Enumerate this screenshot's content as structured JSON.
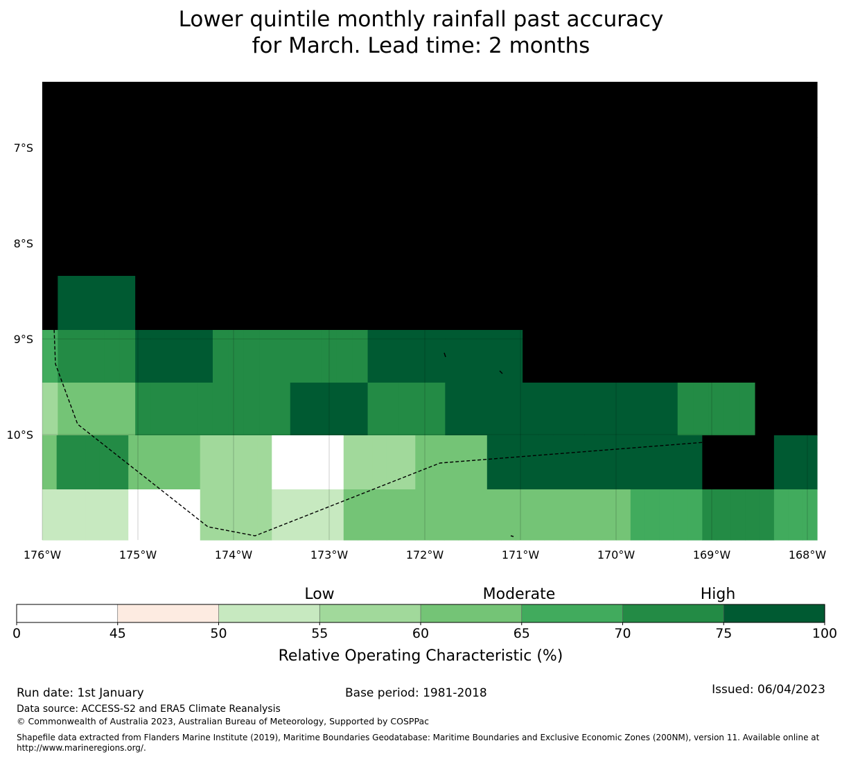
{
  "title": {
    "line1": "Lower quintile monthly rainfall past accuracy",
    "line2": "for March. Lead time: 2 months"
  },
  "map": {
    "lat_labels": [
      "7°S",
      "8°S",
      "9°S",
      "10°S"
    ],
    "lon_labels": [
      "176°W",
      "175°W",
      "174°W",
      "173°W",
      "172°W",
      "171°W",
      "170°W",
      "169°W",
      "168°W"
    ],
    "grid_rows": [
      [
        8,
        8,
        8,
        8,
        8,
        8,
        8,
        8,
        8,
        8,
        8,
        8,
        8,
        8,
        8,
        8,
        8,
        8,
        8,
        8,
        8,
        8,
        8,
        8,
        8,
        8,
        8,
        8,
        8,
        8,
        8,
        8,
        8,
        8,
        8,
        8,
        8,
        8,
        8,
        8,
        8,
        8,
        8,
        8,
        8,
        8,
        8,
        8,
        8,
        8
      ],
      [
        8,
        8,
        8,
        8,
        8,
        8,
        8,
        8,
        8,
        8,
        8,
        8,
        8,
        8,
        8,
        8,
        8,
        8,
        8,
        8,
        8,
        8,
        8,
        8,
        8,
        8,
        8,
        8,
        8,
        8,
        8,
        8,
        8,
        8,
        8,
        8,
        8,
        8,
        8,
        8,
        8,
        8,
        8,
        8,
        8,
        8,
        8,
        8,
        8,
        8
      ],
      [
        8,
        8,
        8,
        8,
        8,
        8,
        8,
        8,
        8,
        8,
        8,
        8,
        8,
        8,
        8,
        8,
        8,
        8,
        8,
        8,
        8,
        8,
        8,
        8,
        8,
        8,
        8,
        8,
        8,
        8,
        8,
        8,
        8,
        8,
        8,
        8,
        8,
        8,
        8,
        8,
        8,
        8,
        8,
        8,
        8,
        8,
        8,
        8,
        8,
        8
      ],
      [
        8,
        7,
        7,
        7,
        7,
        7,
        8,
        8,
        8,
        8,
        8,
        8,
        8,
        8,
        8,
        8,
        8,
        8,
        8,
        8,
        8,
        8,
        8,
        8,
        8,
        8,
        8,
        8,
        8,
        8,
        8,
        8,
        8,
        8,
        8,
        8,
        8,
        8,
        8,
        8,
        8,
        8,
        8,
        8,
        8,
        8,
        8,
        8,
        8,
        8
      ],
      [
        5,
        6,
        6,
        6,
        6,
        6,
        7,
        7,
        7,
        7,
        7,
        6,
        6,
        6,
        6,
        6,
        6,
        6,
        6,
        6,
        6,
        7,
        7,
        7,
        7,
        7,
        7,
        7,
        7,
        7,
        7,
        8,
        8,
        8,
        8,
        8,
        8,
        8,
        8,
        8,
        8,
        8,
        8,
        8,
        8,
        8,
        8,
        8,
        8,
        8
      ],
      [
        3,
        4,
        4,
        4,
        4,
        4,
        6,
        6,
        6,
        6,
        6,
        6,
        6,
        6,
        6,
        6,
        7,
        7,
        7,
        7,
        7,
        6,
        6,
        6,
        6,
        6,
        7,
        7,
        7,
        7,
        7,
        7,
        7,
        7,
        7,
        7,
        7,
        7,
        7,
        7,
        7,
        6,
        6,
        6,
        6,
        6,
        8,
        8,
        8,
        8
      ],
      [
        4,
        6,
        6,
        6,
        6,
        6,
        4,
        4,
        4,
        4,
        4,
        3,
        3,
        3,
        3,
        3,
        0,
        0,
        0,
        0,
        0,
        3,
        3,
        3,
        3,
        3,
        4,
        4,
        4,
        4,
        4,
        7,
        7,
        7,
        7,
        7,
        7,
        7,
        7,
        7,
        7,
        7,
        7,
        7,
        7,
        7,
        8,
        8,
        8,
        8,
        8,
        7,
        7,
        7
      ],
      [
        2,
        2,
        2,
        2,
        2,
        2,
        0,
        0,
        0,
        0,
        0,
        3,
        3,
        3,
        3,
        3,
        2,
        2,
        2,
        2,
        2,
        4,
        4,
        4,
        4,
        4,
        4,
        4,
        4,
        4,
        4,
        4,
        4,
        4,
        4,
        4,
        4,
        4,
        4,
        4,
        4,
        5,
        5,
        5,
        5,
        5,
        6,
        6,
        6,
        6,
        6,
        5,
        5,
        5
      ]
    ],
    "grid_note": "values are ROC colour classes 0-8 per cell"
  },
  "colorbar": {
    "categories": [
      "Low",
      "Moderate",
      "High"
    ],
    "ticks": [
      "0",
      "45",
      "50",
      "55",
      "60",
      "65",
      "70",
      "75",
      "100"
    ],
    "colors": [
      "#ffffff",
      "#fdebe1",
      "#c7e9c0",
      "#a1d99b",
      "#74c476",
      "#41ab5d",
      "#238b45",
      "#005a32"
    ],
    "label": "Relative Operating Characteristic (%)"
  },
  "footer": {
    "run_date": "Run date: 1st January",
    "base_period": "Base period: 1981-2018",
    "issued": "Issued: 06/04/2023",
    "data_source": "Data source: ACCESS-S2 and ERA5 Climate Reanalysis",
    "copyright": "© Commonwealth of Australia 2023, Australian Bureau of Meteorology, Supported by COSPPac",
    "shapefile": "Shapefile data extracted from Flanders Marine Institute (2019), Maritime Boundaries Geodatabase: Maritime Boundaries and Exclusive Economic Zones (200NM), version 11. Available online at http://www.marineregions.org/."
  }
}
